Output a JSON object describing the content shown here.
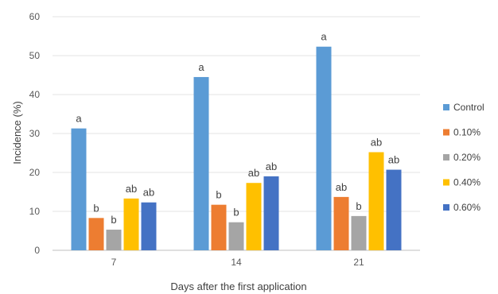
{
  "chart_data": {
    "type": "bar",
    "title": "",
    "xlabel": "Days after the first application",
    "ylabel": "Incidence (%)",
    "categories": [
      "7",
      "14",
      "21"
    ],
    "ylim": [
      0,
      60
    ],
    "yticks": [
      0,
      10,
      20,
      30,
      40,
      50,
      60
    ],
    "grid": true,
    "legend_position": "right",
    "series": [
      {
        "name": "Control",
        "color": "#5b9bd5",
        "values": [
          31.3,
          44.5,
          52.3
        ],
        "labels": [
          "a",
          "a",
          "a"
        ]
      },
      {
        "name": "0.10%",
        "color": "#ed7d31",
        "values": [
          8.3,
          11.7,
          13.7
        ],
        "labels": [
          "b",
          "b",
          "ab"
        ]
      },
      {
        "name": "0.20%",
        "color": "#a5a5a5",
        "values": [
          5.3,
          7.2,
          8.8
        ],
        "labels": [
          "b",
          "b",
          "b"
        ]
      },
      {
        "name": "0.40%",
        "color": "#ffc000",
        "values": [
          13.3,
          17.3,
          25.2
        ],
        "labels": [
          "ab",
          "ab",
          "ab"
        ]
      },
      {
        "name": "0.60%",
        "color": "#4472c4",
        "values": [
          12.3,
          19.0,
          20.7
        ],
        "labels": [
          "ab",
          "ab",
          "ab"
        ]
      }
    ]
  }
}
